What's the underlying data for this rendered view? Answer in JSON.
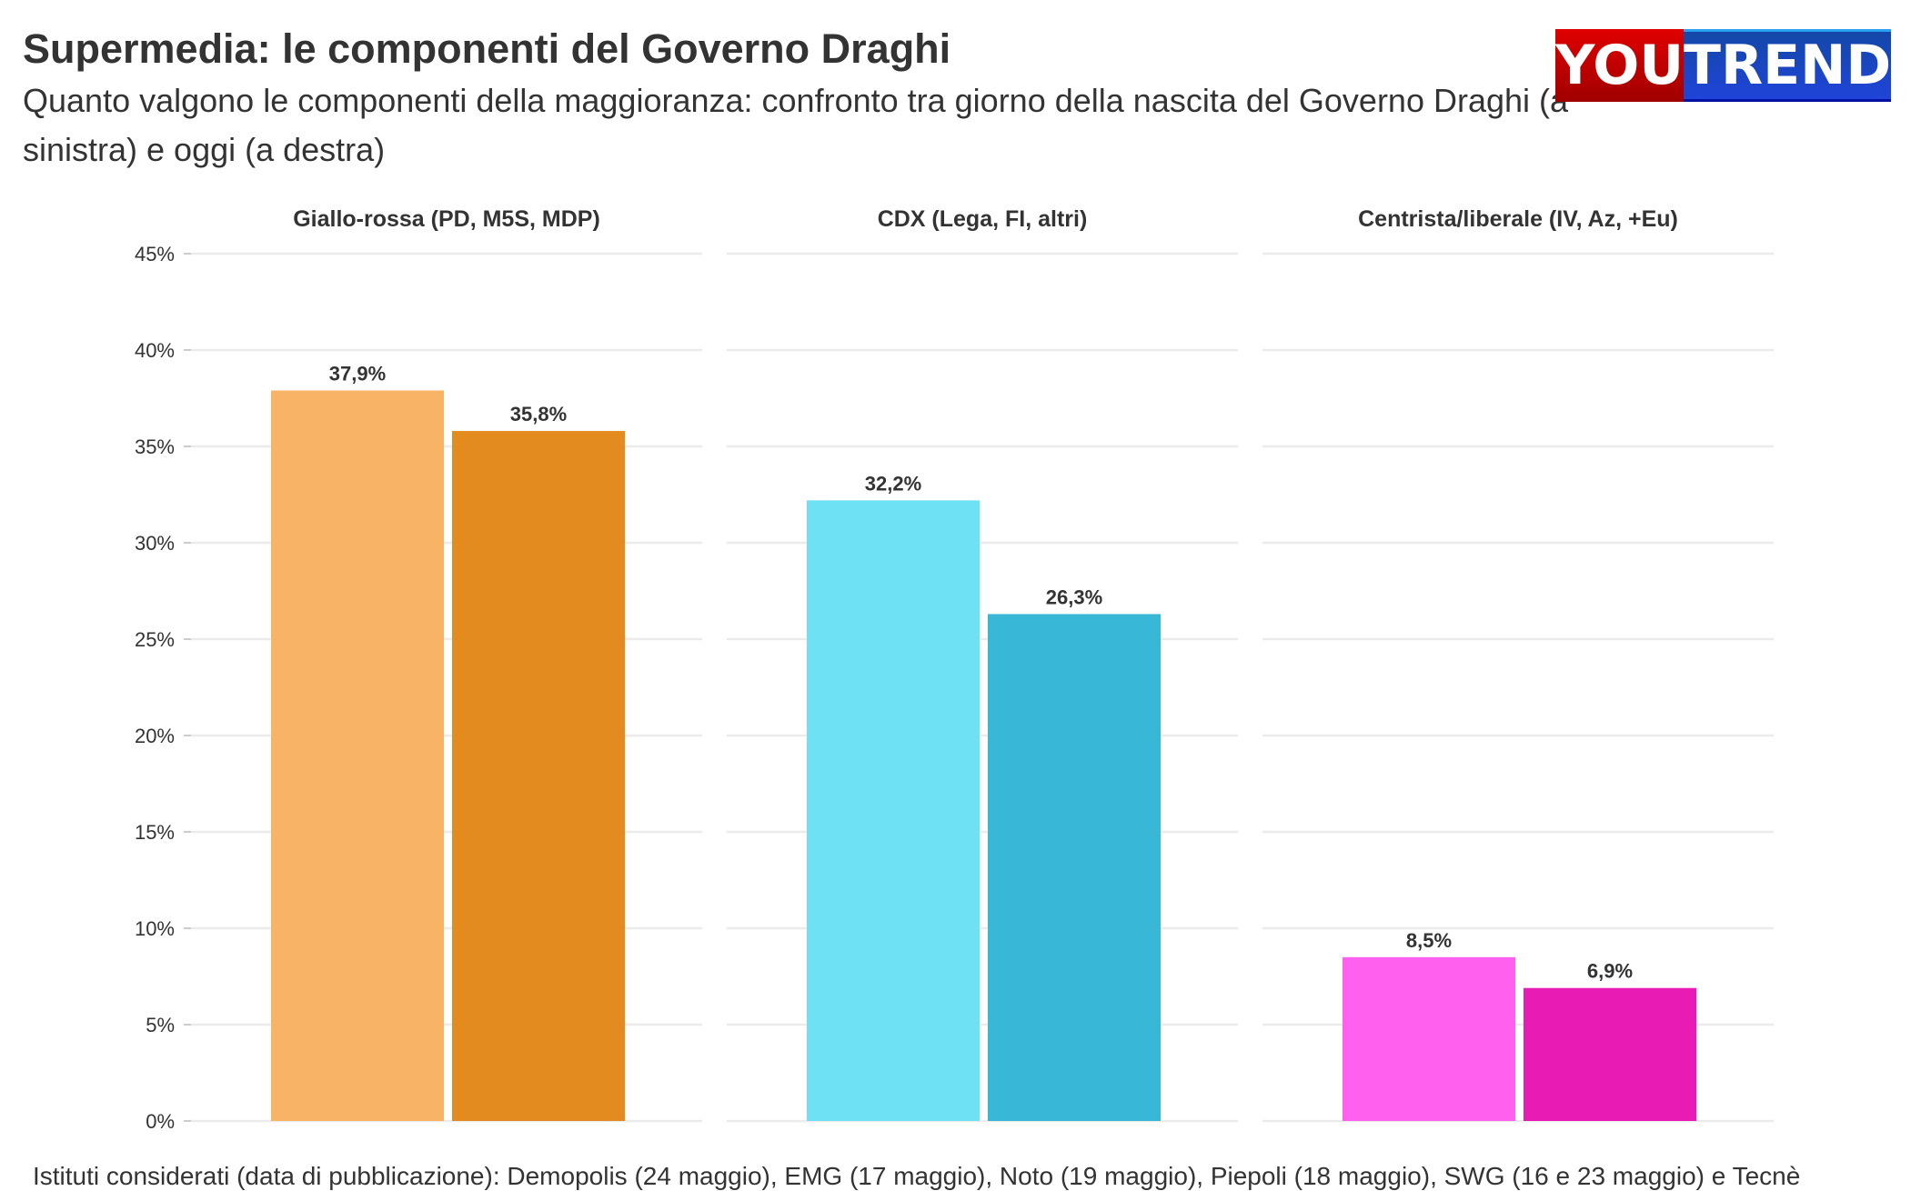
{
  "title": "Supermedia: le componenti del Governo Draghi",
  "subtitle": "Quanto valgono le componenti della maggioranza: confronto tra giorno della nascita del Governo Draghi (a sinistra) e oggi (a destra)",
  "logo": {
    "part1": "YOU",
    "part2": "TREND"
  },
  "caption": "Istituti considerati (data di pubblicazione): Demopolis (24 maggio), EMG (17 maggio), Noto (19 maggio), Piepoli (18 maggio), SWG (16 e 23 maggio) e Tecnè",
  "chart_data": {
    "type": "bar",
    "facets": [
      {
        "title": "Giallo-rossa (PD, M5S, MDP)",
        "values": [
          37.9,
          35.8
        ],
        "labels": [
          "37,9%",
          "35,8%"
        ],
        "colors": [
          "#F8B366",
          "#E38B1F"
        ]
      },
      {
        "title": "CDX (Lega, FI, altri)",
        "values": [
          32.2,
          26.3
        ],
        "labels": [
          "32,2%",
          "26,3%"
        ],
        "colors": [
          "#6EE2F4",
          "#38B7D6"
        ]
      },
      {
        "title": "Centrista/liberale (IV, Az, +Eu)",
        "values": [
          8.5,
          6.9
        ],
        "labels": [
          "8,5%",
          "6,9%"
        ],
        "colors": [
          "#FF61EE",
          "#E91BB5"
        ]
      }
    ],
    "ylim": [
      0,
      45
    ],
    "yticks": [
      "0%",
      "5%",
      "10%",
      "15%",
      "20%",
      "25%",
      "30%",
      "35%",
      "40%",
      "45%"
    ],
    "grid": true
  }
}
